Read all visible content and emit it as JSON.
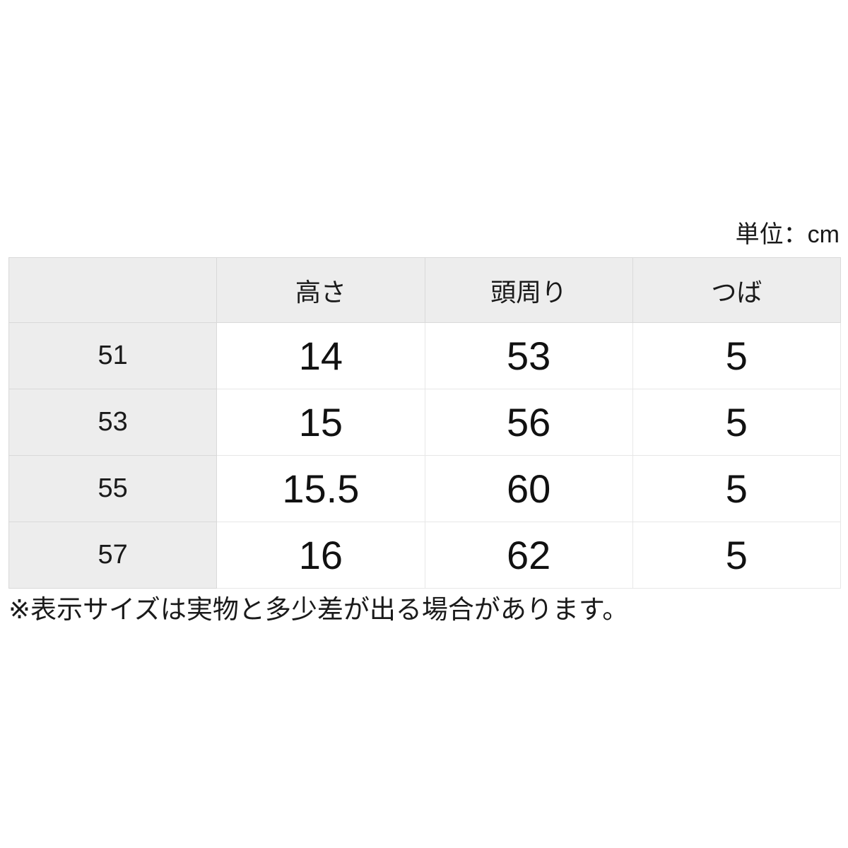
{
  "unit_label": "単位：cm",
  "note": "※表示サイズは実物と多少差が出る場合があります。",
  "colors": {
    "header_bg": "#ededed",
    "border_dark": "#d9d9d9",
    "border_light": "#e7e7e7",
    "text": "#1a1a1a",
    "page_bg": "#ffffff"
  },
  "chart_data": {
    "type": "table",
    "title": "",
    "unit": "cm",
    "columns": [
      "",
      "高さ",
      "頭周り",
      "つば"
    ],
    "rows": [
      [
        "51",
        "14",
        "53",
        "5"
      ],
      [
        "53",
        "15",
        "56",
        "5"
      ],
      [
        "55",
        "15.5",
        "60",
        "5"
      ],
      [
        "57",
        "16",
        "62",
        "5"
      ]
    ],
    "layout_hints": {
      "header_row_shaded": true,
      "first_column_shaded": true,
      "grid": true
    }
  }
}
